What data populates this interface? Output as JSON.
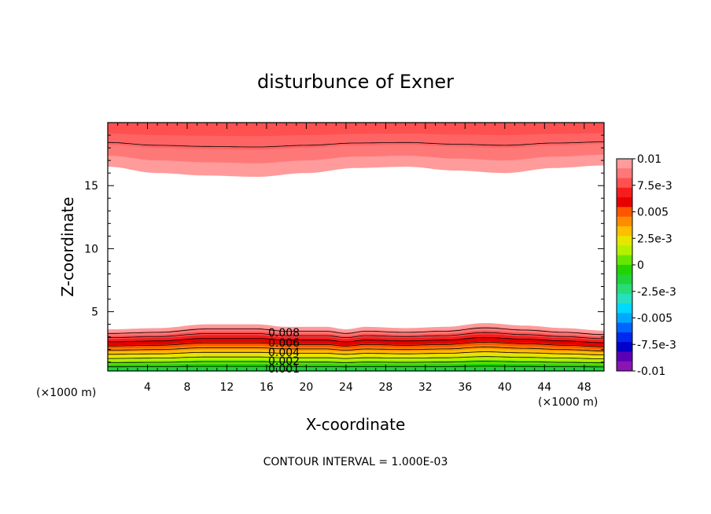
{
  "chart_data": {
    "type": "filled-contour",
    "title": "disturbunce of Exner",
    "xlabel": "X-coordinate",
    "ylabel": "Z-coordinate",
    "x_unit": "(×1000 m)",
    "y_unit": "(×1000 m)",
    "xlim": [
      0,
      50
    ],
    "ylim": [
      0.3,
      20
    ],
    "x_ticks": [
      4,
      8,
      12,
      16,
      20,
      24,
      28,
      32,
      36,
      40,
      44,
      48
    ],
    "y_ticks": [
      5,
      10,
      15
    ],
    "footer": "CONTOUR INTERVAL = 1.000E-03",
    "contour_interval": 0.001,
    "colorbar": {
      "min": -0.01,
      "max": 0.01,
      "labels": [
        "0.01",
        "7.5e-3",
        "0.005",
        "2.5e-3",
        "0",
        "-2.5e-3",
        "-0.005",
        "-7.5e-3",
        "-0.01"
      ],
      "colors": [
        "#ff9b9b",
        "#ff7878",
        "#ff5050",
        "#f51d1d",
        "#e60000",
        "#ff5500",
        "#ff8c00",
        "#ffbe00",
        "#e6e600",
        "#b4f000",
        "#66e600",
        "#22d300",
        "#1ed43b",
        "#28dc78",
        "#27e0c0",
        "#00d8ff",
        "#00a8ff",
        "#0064ff",
        "#0028f0",
        "#0000c8",
        "#5a00b4",
        "#8c14b4"
      ]
    },
    "contour_labels": [
      "0.008",
      "0.006",
      "0.004",
      "0.002",
      "0.001"
    ],
    "fields": {
      "lower_band": {
        "description_levels": [
          0.001,
          0.002,
          0.003,
          0.004,
          0.005,
          0.006,
          0.007,
          0.008,
          0.009
        ],
        "x": [
          0,
          5,
          10,
          15,
          18,
          22,
          24,
          26,
          30,
          34,
          38,
          42,
          46,
          50
        ],
        "top_z": [
          3.6,
          3.7,
          4.0,
          4.0,
          3.8,
          3.8,
          3.6,
          3.8,
          3.7,
          3.8,
          4.1,
          3.9,
          3.7,
          3.5
        ]
      },
      "upper_band": {
        "x": [
          0,
          5,
          10,
          15,
          20,
          25,
          30,
          35,
          40,
          45,
          50
        ],
        "bottom_z": [
          16.5,
          16.0,
          15.8,
          15.7,
          16.0,
          16.4,
          16.5,
          16.2,
          16.0,
          16.4,
          16.6
        ]
      }
    }
  }
}
